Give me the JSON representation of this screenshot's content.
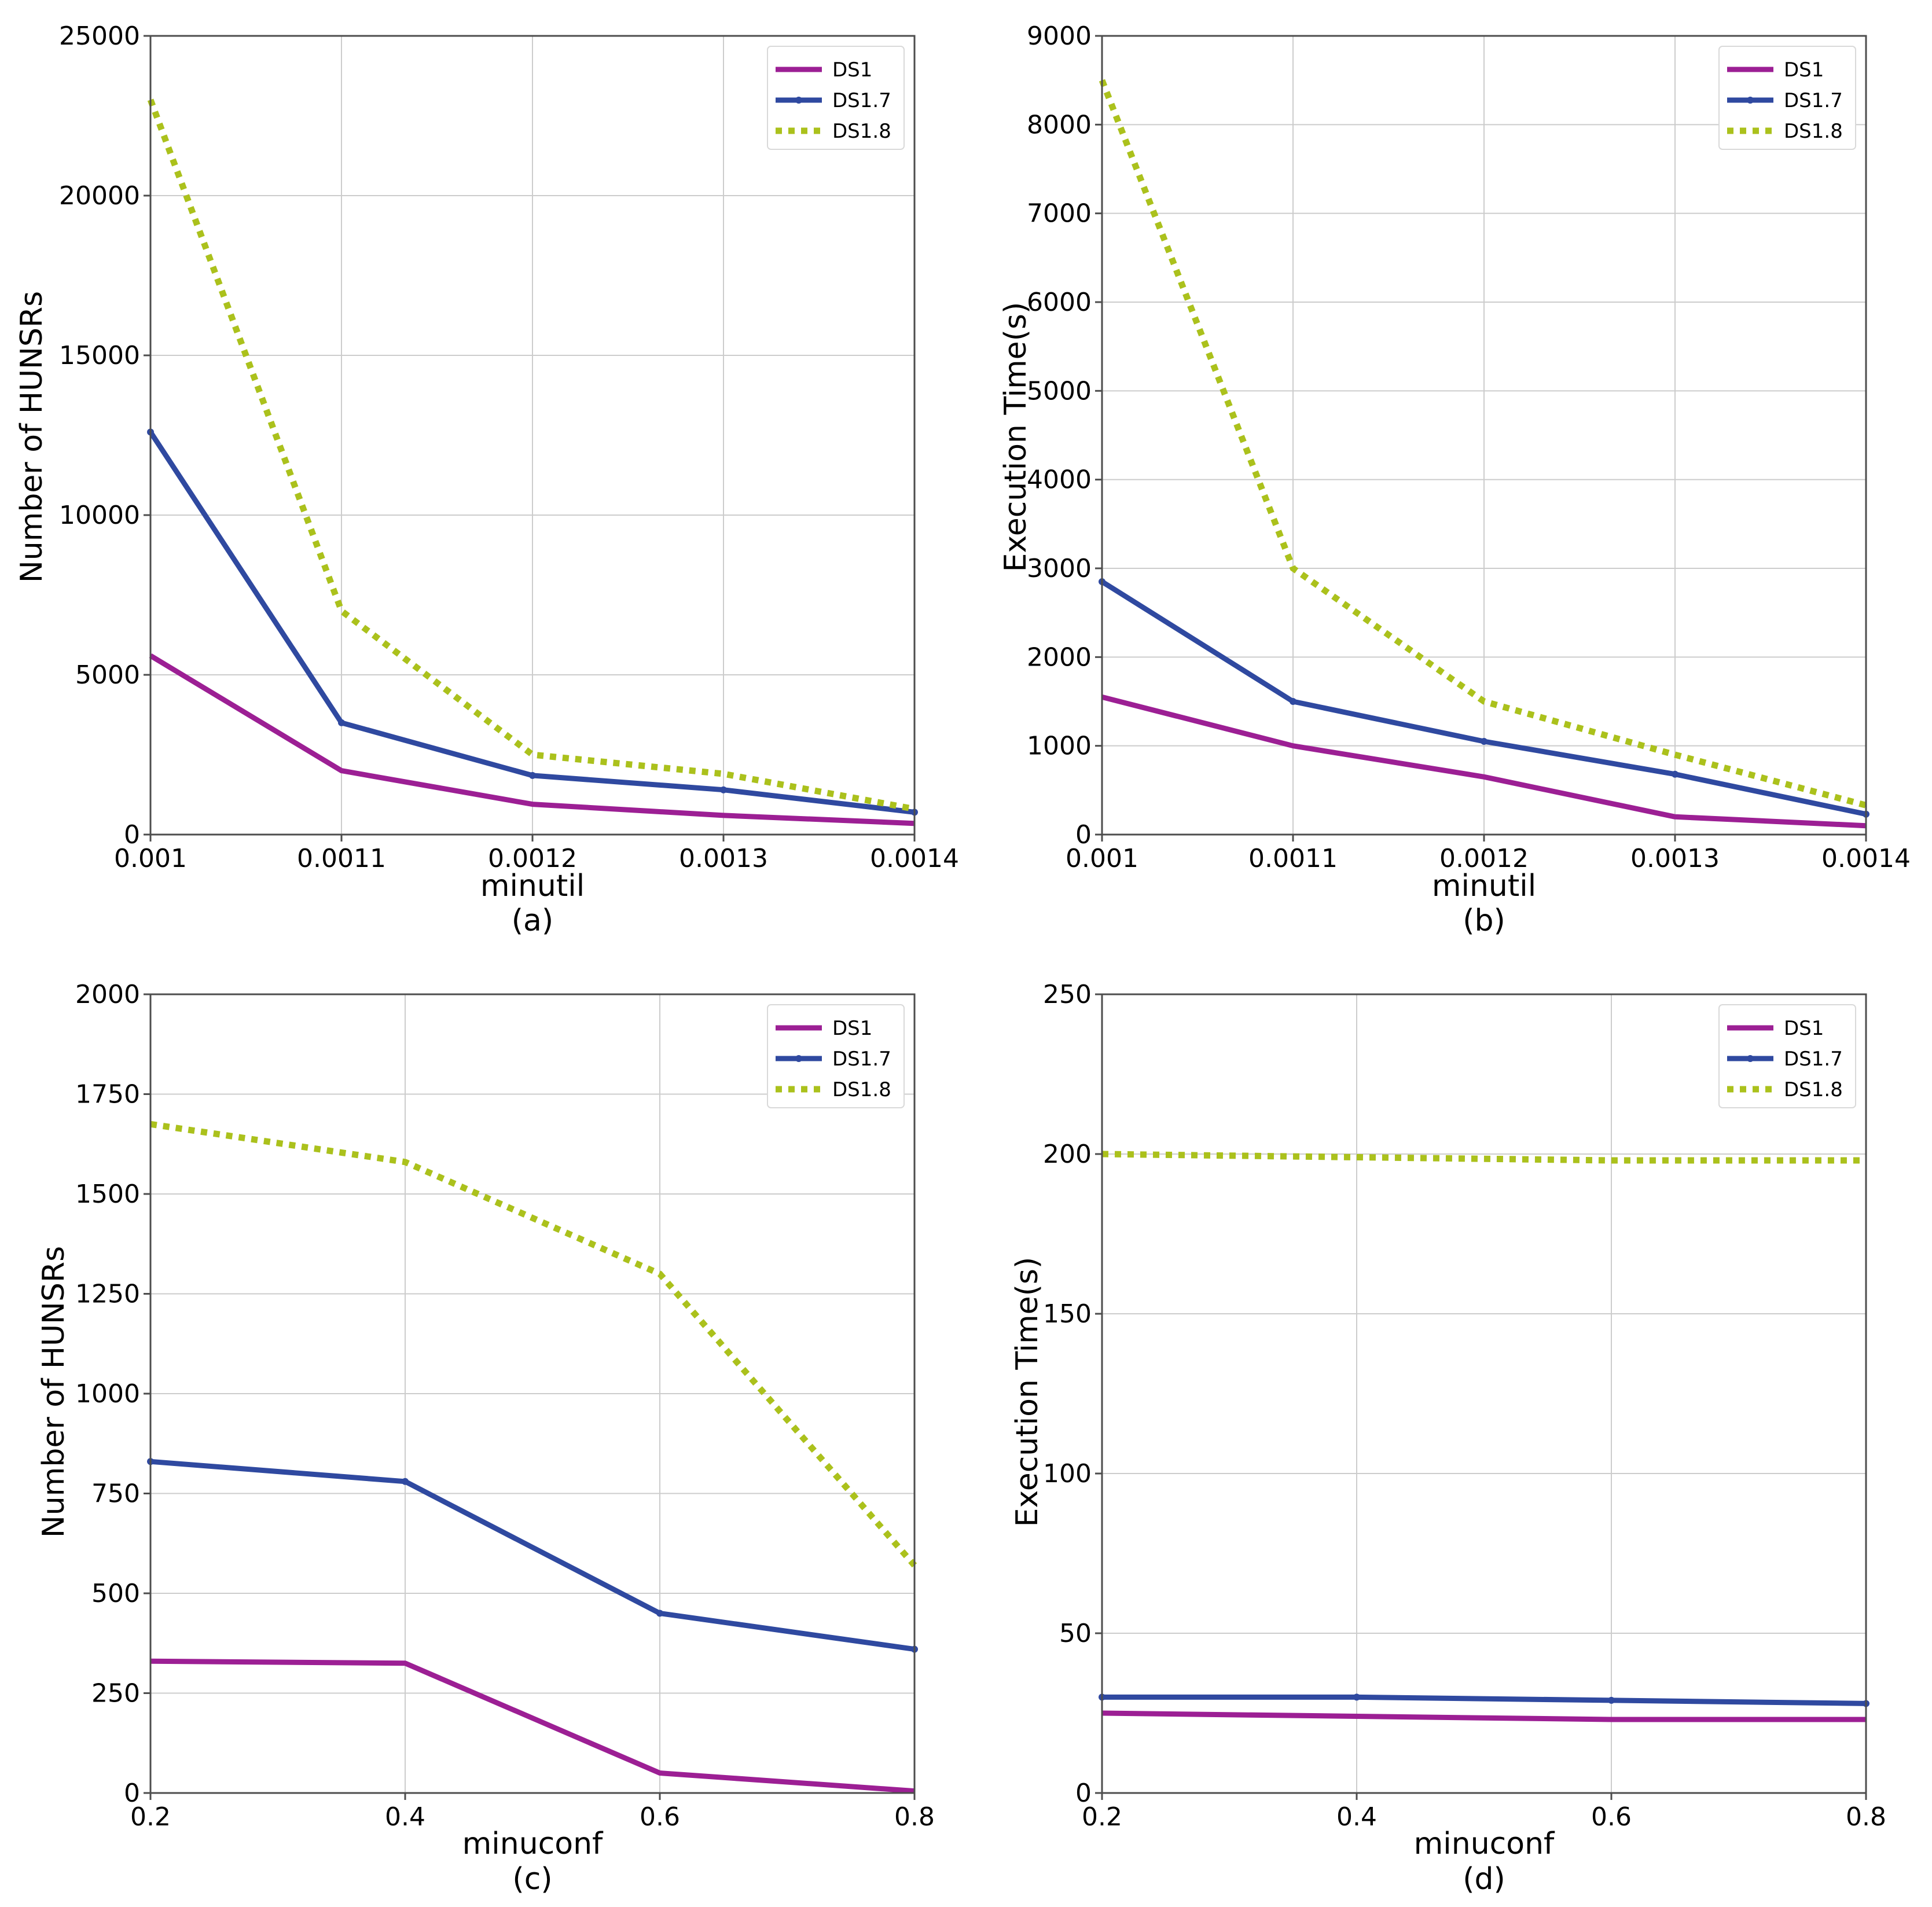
{
  "colors": {
    "DS1": "#9c1f94",
    "DS1.7": "#2f49a0",
    "DS1.8": "#abc11c",
    "grid": "#cccccc",
    "axis": "#4d4d4d"
  },
  "chart_data": [
    {
      "type": "line",
      "panel": "(a)",
      "xlabel": "minutil",
      "ylabel": "Number of HUNSRs",
      "x": [
        0.001,
        0.0011,
        0.0012,
        0.0013,
        0.0014
      ],
      "xticks": [
        "0.001",
        "0.0011",
        "0.0012",
        "0.0013",
        "0.0014"
      ],
      "xlim": [
        0.001,
        0.0014
      ],
      "ylim": [
        0,
        25000
      ],
      "yticks": [
        "0",
        "5000",
        "10000",
        "15000",
        "20000",
        "25000"
      ],
      "ytick_values": [
        0,
        5000,
        10000,
        15000,
        20000,
        25000
      ],
      "grid": true,
      "legend": "top-right",
      "series": [
        {
          "name": "DS1",
          "style": "solid",
          "values": [
            5600,
            2000,
            950,
            600,
            350
          ]
        },
        {
          "name": "DS1.7",
          "style": "solid-marker",
          "values": [
            12600,
            3500,
            1850,
            1400,
            700
          ]
        },
        {
          "name": "DS1.8",
          "style": "dotted",
          "values": [
            23000,
            7000,
            2500,
            1900,
            800
          ]
        }
      ]
    },
    {
      "type": "line",
      "panel": "(b)",
      "xlabel": "minutil",
      "ylabel": "Execution Time(s)",
      "x": [
        0.001,
        0.0011,
        0.0012,
        0.0013,
        0.0014
      ],
      "xticks": [
        "0.001",
        "0.0011",
        "0.0012",
        "0.0013",
        "0.0014"
      ],
      "xlim": [
        0.001,
        0.0014
      ],
      "ylim": [
        0,
        9000
      ],
      "yticks": [
        "0",
        "1000",
        "2000",
        "3000",
        "4000",
        "5000",
        "6000",
        "7000",
        "8000",
        "9000"
      ],
      "ytick_values": [
        0,
        1000,
        2000,
        3000,
        4000,
        5000,
        6000,
        7000,
        8000,
        9000
      ],
      "grid": true,
      "legend": "top-right",
      "series": [
        {
          "name": "DS1",
          "style": "solid",
          "values": [
            1550,
            1000,
            650,
            200,
            100
          ]
        },
        {
          "name": "DS1.7",
          "style": "solid-marker",
          "values": [
            2850,
            1500,
            1050,
            680,
            230
          ]
        },
        {
          "name": "DS1.8",
          "style": "dotted",
          "values": [
            8500,
            3000,
            1500,
            900,
            330
          ]
        }
      ]
    },
    {
      "type": "line",
      "panel": "(c)",
      "xlabel": "minuconf",
      "ylabel": "Number of HUNSRs",
      "x": [
        0.2,
        0.4,
        0.6,
        0.8
      ],
      "xticks": [
        "0.2",
        "0.4",
        "0.6",
        "0.8"
      ],
      "xlim": [
        0.2,
        0.8
      ],
      "ylim": [
        0,
        2000
      ],
      "yticks": [
        "0",
        "250",
        "500",
        "750",
        "1000",
        "1250",
        "1500",
        "1750",
        "2000"
      ],
      "ytick_values": [
        0,
        250,
        500,
        750,
        1000,
        1250,
        1500,
        1750,
        2000
      ],
      "grid": true,
      "legend": "top-right",
      "series": [
        {
          "name": "DS1",
          "style": "solid",
          "values": [
            330,
            325,
            50,
            5
          ]
        },
        {
          "name": "DS1.7",
          "style": "solid-marker",
          "values": [
            830,
            780,
            450,
            360
          ]
        },
        {
          "name": "DS1.8",
          "style": "dotted",
          "values": [
            1675,
            1580,
            1300,
            570
          ]
        }
      ]
    },
    {
      "type": "line",
      "panel": "(d)",
      "xlabel": "minuconf",
      "ylabel": "Execution Time(s)",
      "x": [
        0.2,
        0.4,
        0.6,
        0.8
      ],
      "xticks": [
        "0.2",
        "0.4",
        "0.6",
        "0.8"
      ],
      "xlim": [
        0.2,
        0.8
      ],
      "ylim": [
        0,
        250
      ],
      "yticks": [
        "0",
        "50",
        "100",
        "150",
        "200",
        "250"
      ],
      "ytick_values": [
        0,
        50,
        100,
        150,
        200,
        250
      ],
      "grid": true,
      "legend": "top-right",
      "series": [
        {
          "name": "DS1",
          "style": "solid",
          "values": [
            25,
            24,
            23,
            23
          ]
        },
        {
          "name": "DS1.7",
          "style": "solid-marker",
          "values": [
            30,
            30,
            29,
            28
          ]
        },
        {
          "name": "DS1.8",
          "style": "dotted",
          "values": [
            200,
            199,
            198,
            198
          ]
        }
      ]
    }
  ]
}
